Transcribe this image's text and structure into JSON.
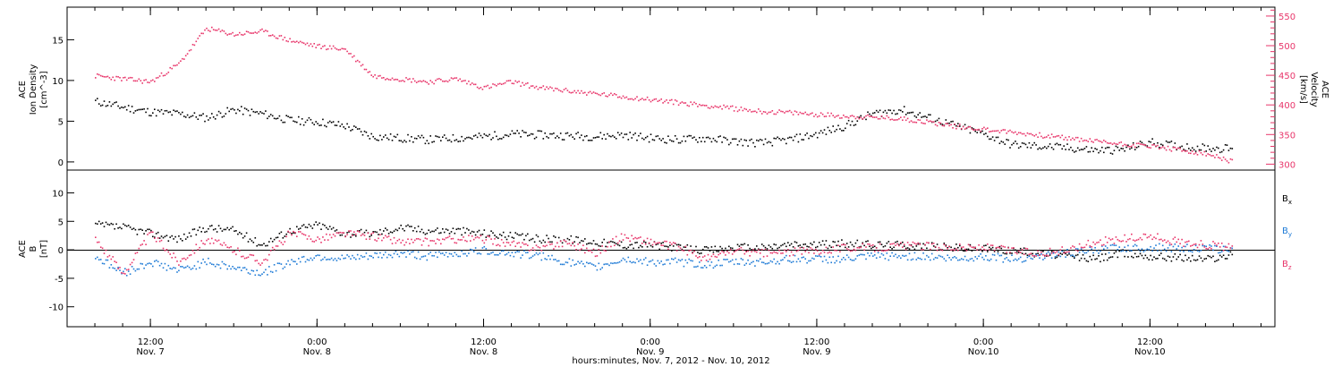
{
  "chart_data": [
    {
      "type": "scatter",
      "panel": "top",
      "ylabel_lines": [
        "ACE",
        "Ion Density",
        "[cm^-3]"
      ],
      "ylim": [
        -1,
        19
      ],
      "yticks": [
        0,
        5,
        10,
        15
      ],
      "y2label_lines": [
        "ACE",
        "Velocity",
        "[km/s]"
      ],
      "y2lim": [
        290,
        565
      ],
      "y2ticks": [
        300,
        350,
        400,
        450,
        500,
        550
      ],
      "series": [
        {
          "axis": "left",
          "color": "#000000",
          "x": [
            2,
            4,
            6,
            8,
            10,
            12,
            14,
            16,
            18,
            20,
            22,
            24,
            26,
            28,
            30,
            32,
            34,
            36,
            38,
            40,
            42,
            44,
            46,
            48,
            50,
            52,
            54,
            56,
            58,
            60,
            62,
            64,
            66,
            68,
            70,
            72,
            74,
            76,
            78,
            80,
            82,
            84
          ],
          "y": [
            7.5,
            6.8,
            6.2,
            6.0,
            5.5,
            6.5,
            6.0,
            5.2,
            5.0,
            4.5,
            3.2,
            3.0,
            2.8,
            3.0,
            3.2,
            3.5,
            3.4,
            3.3,
            3.2,
            3.4,
            3.0,
            2.8,
            3.0,
            2.6,
            2.4,
            2.8,
            3.5,
            4.5,
            6.0,
            6.5,
            5.5,
            4.5,
            3.5,
            2.2,
            2.0,
            1.8,
            1.5,
            1.6,
            2.5,
            2.0,
            1.8,
            1.7
          ]
        },
        {
          "axis": "right",
          "color": "#e8356a",
          "x": [
            2,
            4,
            6,
            8,
            10,
            12,
            14,
            16,
            18,
            20,
            22,
            24,
            26,
            28,
            30,
            32,
            34,
            36,
            38,
            40,
            42,
            44,
            46,
            48,
            50,
            52,
            54,
            56,
            58,
            60,
            62,
            64,
            66,
            68,
            70,
            72,
            74,
            76,
            78,
            80,
            82,
            84
          ],
          "y": [
            450,
            445,
            440,
            470,
            530,
            520,
            525,
            510,
            500,
            495,
            450,
            445,
            440,
            445,
            430,
            440,
            430,
            425,
            420,
            415,
            410,
            405,
            400,
            395,
            390,
            388,
            385,
            382,
            380,
            378,
            372,
            365,
            360,
            355,
            350,
            345,
            340,
            335,
            332,
            325,
            318,
            305
          ]
        }
      ]
    },
    {
      "type": "scatter",
      "panel": "bottom",
      "ylabel_lines": [
        "ACE",
        "B",
        "[nT]"
      ],
      "ylim": [
        -13.5,
        14
      ],
      "yticks": [
        -10,
        -5,
        0,
        5,
        10
      ],
      "zero_line": true,
      "legend_position": "right",
      "series": [
        {
          "name": "B_x",
          "color": "#000000",
          "x": [
            2,
            4,
            6,
            8,
            10,
            12,
            14,
            16,
            18,
            20,
            22,
            24,
            26,
            28,
            30,
            32,
            34,
            36,
            38,
            40,
            42,
            44,
            46,
            48,
            50,
            52,
            54,
            56,
            58,
            60,
            62,
            64,
            66,
            68,
            70,
            72,
            74,
            76,
            78,
            80,
            82,
            84
          ],
          "y": [
            4.5,
            4.0,
            3.0,
            2.0,
            4.0,
            3.5,
            1.0,
            3.5,
            4.5,
            3.0,
            3.0,
            4.0,
            3.5,
            3.5,
            3.0,
            2.5,
            2.0,
            2.0,
            1.5,
            1.0,
            1.0,
            0.5,
            0.0,
            0.5,
            0.5,
            1.0,
            1.0,
            1.2,
            1.0,
            1.0,
            0.8,
            0.5,
            0.3,
            0.0,
            -0.5,
            -1.0,
            -1.5,
            -0.5,
            -1.0,
            -1.2,
            -1.5,
            -0.8
          ]
        },
        {
          "name": "B_y",
          "color": "#1f7bd6",
          "x": [
            2,
            4,
            6,
            8,
            10,
            12,
            14,
            16,
            18,
            20,
            22,
            24,
            26,
            28,
            30,
            32,
            34,
            36,
            38,
            40,
            42,
            44,
            46,
            48,
            50,
            52,
            54,
            56,
            58,
            60,
            62,
            64,
            66,
            68,
            70,
            72,
            74,
            76,
            78,
            80,
            82,
            84
          ],
          "y": [
            -1.0,
            -4.0,
            -2.0,
            -3.5,
            -2.0,
            -3.0,
            -4.0,
            -2.0,
            -1.0,
            -1.5,
            -1.0,
            -0.5,
            -1.0,
            -0.5,
            0.0,
            -0.5,
            -1.0,
            -2.0,
            -3.0,
            -1.5,
            -2.0,
            -2.0,
            -2.5,
            -2.0,
            -2.0,
            -1.5,
            -1.5,
            -1.5,
            -1.0,
            -1.0,
            -1.0,
            -1.5,
            -1.0,
            -1.5,
            -1.0,
            -0.5,
            0.0,
            0.5,
            0.5,
            0.5,
            0.3,
            0.2
          ]
        },
        {
          "name": "B_z",
          "color": "#e8356a",
          "x": [
            2,
            4,
            6,
            8,
            10,
            12,
            14,
            16,
            18,
            20,
            22,
            24,
            26,
            28,
            30,
            32,
            34,
            36,
            38,
            40,
            42,
            44,
            46,
            48,
            50,
            52,
            54,
            56,
            58,
            60,
            62,
            64,
            66,
            68,
            70,
            72,
            74,
            76,
            78,
            80,
            82,
            84
          ],
          "y": [
            2.0,
            -4.0,
            3.0,
            -2.0,
            2.0,
            0.0,
            -2.0,
            3.0,
            2.0,
            3.0,
            2.5,
            1.5,
            1.5,
            2.0,
            2.0,
            1.0,
            0.5,
            1.5,
            -0.5,
            2.5,
            1.5,
            0.5,
            -1.5,
            0.0,
            -0.5,
            -0.3,
            0.0,
            0.5,
            0.5,
            0.8,
            0.8,
            0.5,
            0.5,
            0.0,
            -0.5,
            0.0,
            1.5,
            2.0,
            2.5,
            1.5,
            1.0,
            0.5
          ]
        }
      ]
    }
  ],
  "x_axis": {
    "range": [
      0,
      87
    ],
    "major_ticks": [
      {
        "x": 6,
        "line1": "12:00",
        "line2": "Nov. 7"
      },
      {
        "x": 18,
        "line1": "0:00",
        "line2": "Nov. 8"
      },
      {
        "x": 30,
        "line1": "12:00",
        "line2": "Nov. 8"
      },
      {
        "x": 42,
        "line1": "0:00",
        "line2": "Nov. 9"
      },
      {
        "x": 54,
        "line1": "12:00",
        "line2": "Nov. 9"
      },
      {
        "x": 66,
        "line1": "0:00",
        "line2": "Nov.10"
      },
      {
        "x": 78,
        "line1": "12:00",
        "line2": "Nov.10"
      }
    ],
    "xlabel": "hours:minutes, Nov.  7, 2012 - Nov. 10, 2012"
  },
  "legend": {
    "bx_base": "B",
    "bx_sub": "x",
    "by_base": "B",
    "by_sub": "y",
    "bz_base": "B",
    "bz_sub": "z"
  }
}
